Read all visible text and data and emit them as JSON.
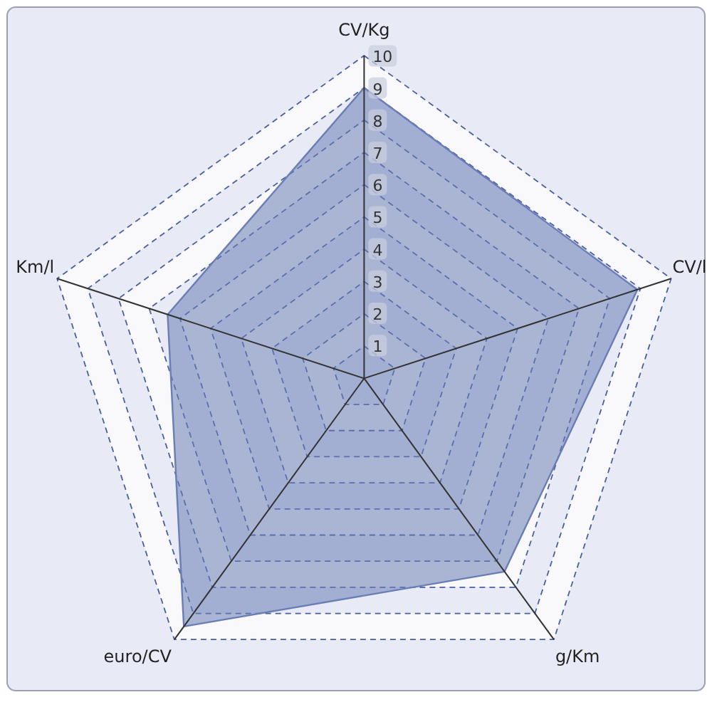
{
  "chart_data": {
    "type": "radar",
    "categories": [
      "CV/Kg",
      "CV/l",
      "g/Km",
      "euro/CV",
      "Km/l"
    ],
    "series": [
      {
        "color": "#6a7db5",
        "values": [
          9,
          8.9,
          7.4,
          9.5,
          6.4
        ]
      }
    ],
    "ylim": [
      0,
      10
    ],
    "yticks": [
      1,
      2,
      3,
      4,
      5,
      6,
      7,
      8,
      9,
      10
    ],
    "grid": true
  }
}
